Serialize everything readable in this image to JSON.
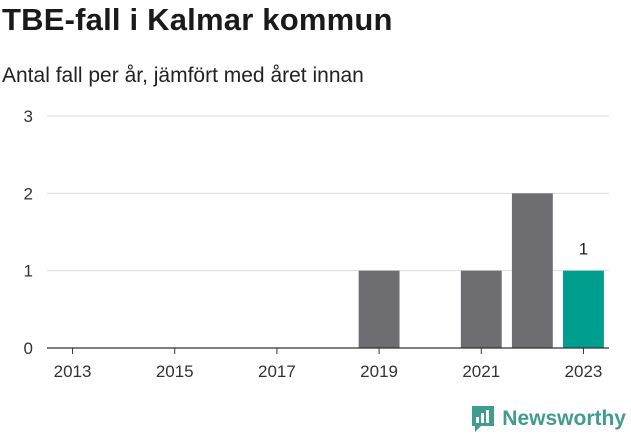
{
  "title": "TBE-fall i Kalmar kommun",
  "subtitle": "Antal fall per år, jämfört med året innan",
  "brand": {
    "name": "Newsworthy",
    "icon": "newsworthy-logo-icon"
  },
  "colors": {
    "bar": "#6e6d72",
    "highlight": "#009e8f",
    "grid": "#dddddd",
    "axis": "#333333",
    "brand": "#3f9c8f"
  },
  "chart_data": {
    "type": "bar",
    "categories": [
      2013,
      2014,
      2015,
      2016,
      2017,
      2018,
      2019,
      2020,
      2021,
      2022,
      2023
    ],
    "values": [
      0,
      0,
      0,
      0,
      0,
      0,
      1,
      0,
      1,
      2,
      1
    ],
    "highlight_index": 10,
    "data_labels": [
      {
        "index": 10,
        "text": "1"
      }
    ],
    "x_ticks": [
      2013,
      2015,
      2017,
      2019,
      2021,
      2023
    ],
    "y_ticks": [
      0,
      1,
      2,
      3
    ],
    "ylim": [
      0,
      3
    ],
    "grid": true,
    "legend": "none",
    "xlabel": "",
    "ylabel": ""
  }
}
